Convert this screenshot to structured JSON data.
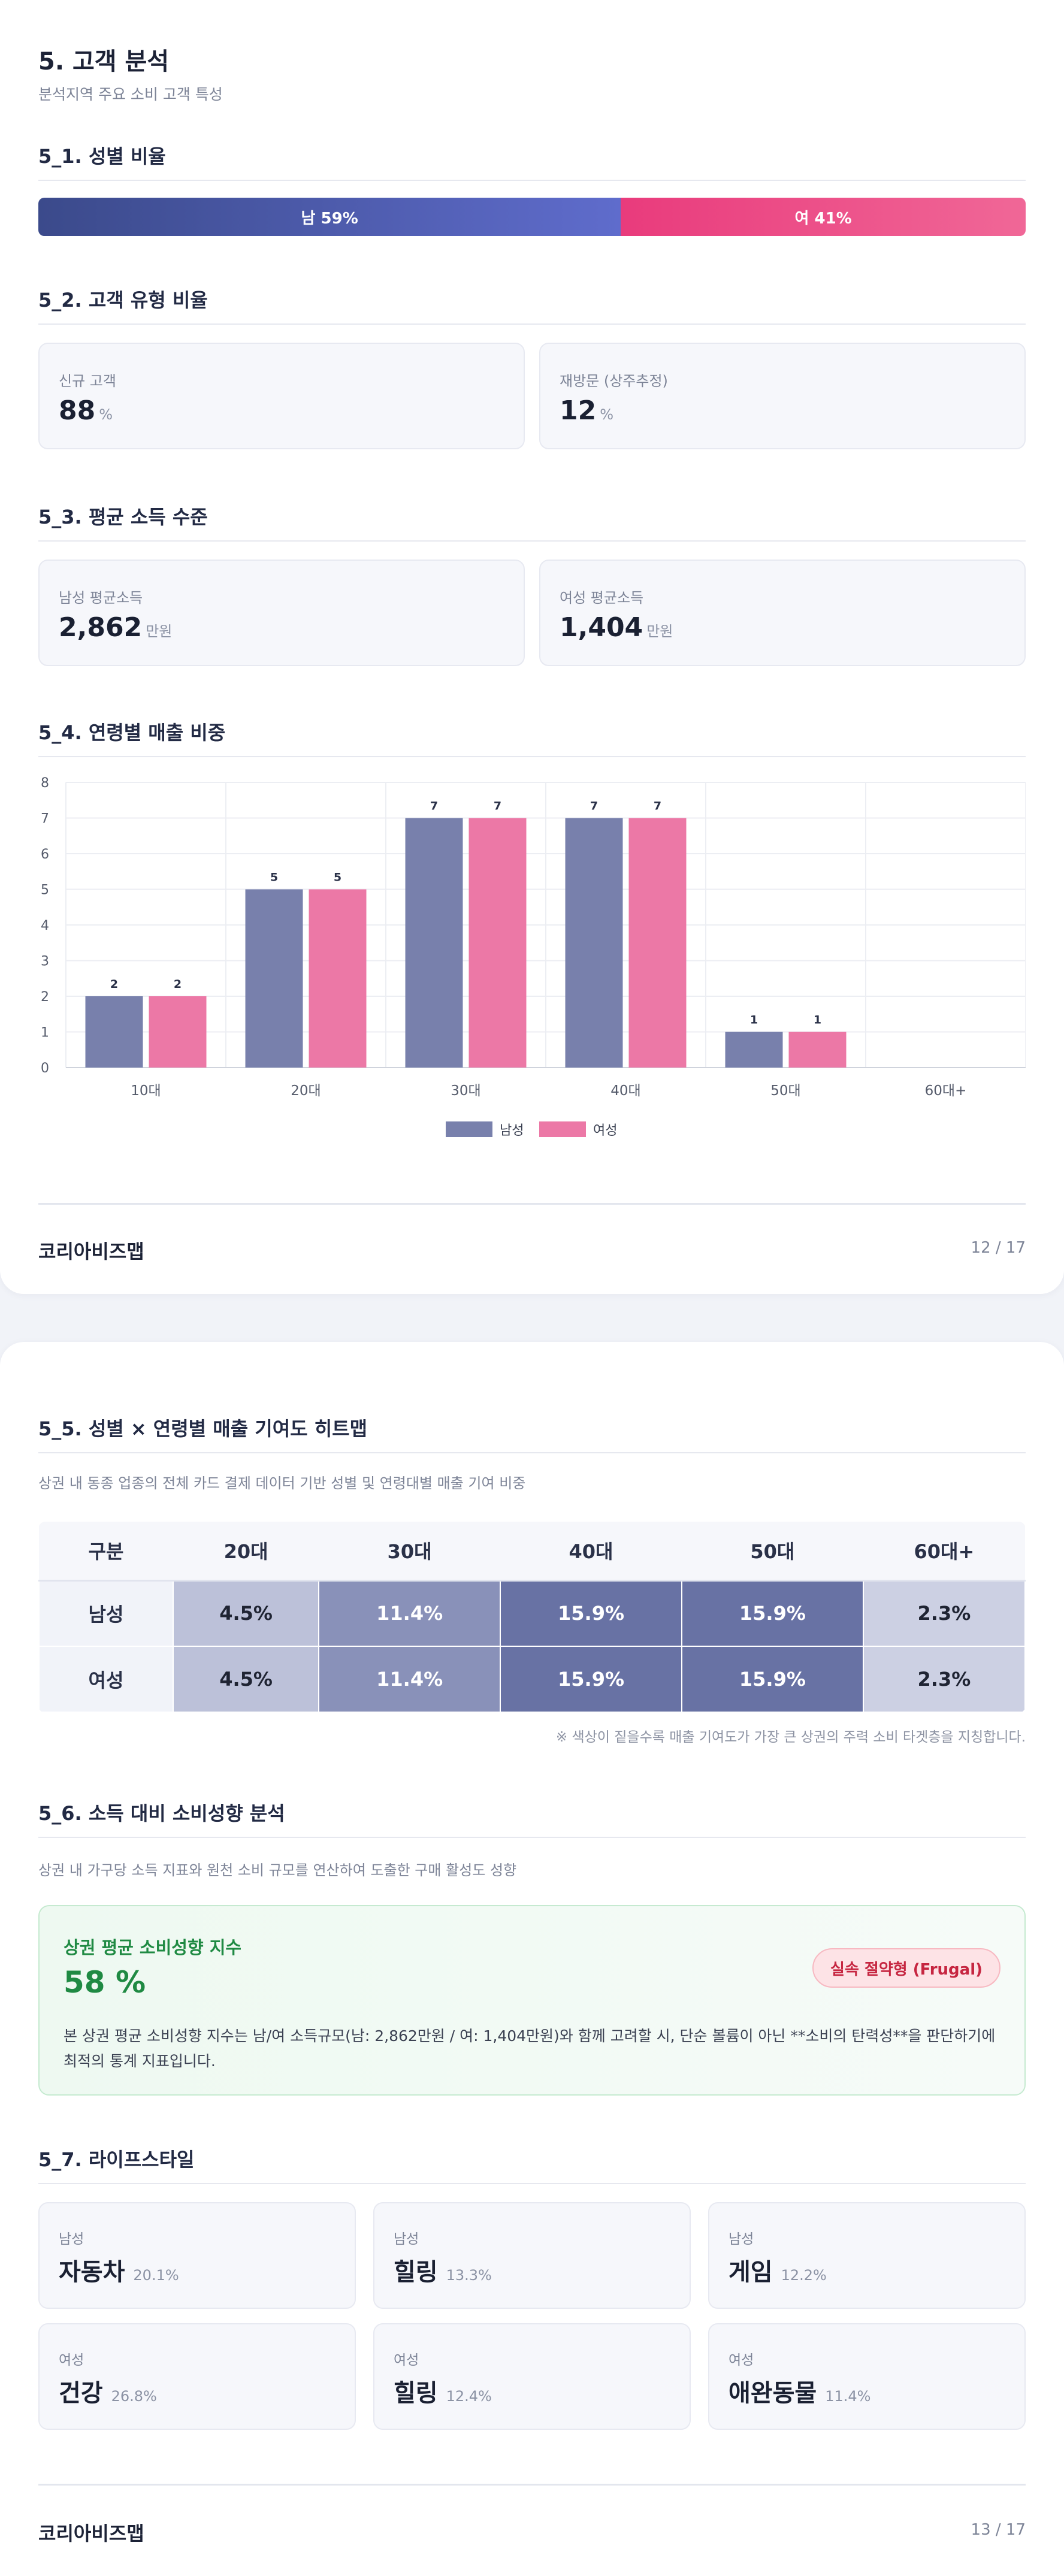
{
  "page1": {
    "title": "5. 고객 분석",
    "subtitle": "분석지역 주요 소비 고객 특성",
    "gender": {
      "heading": "5_1. 성별 비율",
      "male_label": "남 59%",
      "female_label": "여 41%",
      "male_share": 59,
      "female_share": 41,
      "colors": {
        "male": "#4a58a8",
        "female": "#ec4f88"
      }
    },
    "customer_type": {
      "heading": "5_2. 고객 유형 비율",
      "cards": [
        {
          "label": "신규 고객",
          "value": "88",
          "unit": "%"
        },
        {
          "label": "재방문 (상주추정)",
          "value": "12",
          "unit": "%"
        }
      ]
    },
    "income": {
      "heading": "5_3. 평균 소득 수준",
      "cards": [
        {
          "label": "남성 평균소득",
          "value": "2,862",
          "unit": "만원"
        },
        {
          "label": "여성 평균소득",
          "value": "1,404",
          "unit": "만원"
        }
      ]
    },
    "age_sales": {
      "heading": "5_4. 연령별 매출 비중"
    },
    "footer": {
      "brand": "코리아비즈맵",
      "page": "12 / 17"
    }
  },
  "chart_data": {
    "type": "bar",
    "categories": [
      "10대",
      "20대",
      "30대",
      "40대",
      "50대",
      "60대+"
    ],
    "series": [
      {
        "name": "남성",
        "values": [
          2,
          5,
          7,
          7,
          1,
          0
        ],
        "color": "#7880ac"
      },
      {
        "name": "여성",
        "values": [
          2,
          5,
          7,
          7,
          1,
          0
        ],
        "color": "#ec78a6"
      }
    ],
    "ylim": [
      0,
      8
    ],
    "yticks": [
      0,
      1,
      2,
      3,
      4,
      5,
      6,
      7,
      8
    ],
    "grid": true,
    "legend": "bottom"
  },
  "page2": {
    "heatmap": {
      "heading": "5_5. 성별 × 연령별 매출 기여도 히트맵",
      "description": "상권 내 동종 업종의 전체 카드 결제 데이터 기반 성별 및 연령대별 매출 기여 비중",
      "columns": [
        "구분",
        "20대",
        "30대",
        "40대",
        "50대",
        "60대+"
      ],
      "rows": [
        {
          "label": "남성",
          "cells": [
            {
              "text": "4.5%",
              "value": 4.5
            },
            {
              "text": "11.4%",
              "value": 11.4
            },
            {
              "text": "15.9%",
              "value": 15.9
            },
            {
              "text": "15.9%",
              "value": 15.9
            },
            {
              "text": "2.3%",
              "value": 2.3
            }
          ]
        },
        {
          "label": "여성",
          "cells": [
            {
              "text": "4.5%",
              "value": 4.5
            },
            {
              "text": "11.4%",
              "value": 11.4
            },
            {
              "text": "15.9%",
              "value": 15.9
            },
            {
              "text": "15.9%",
              "value": 15.9
            },
            {
              "text": "2.3%",
              "value": 2.3
            }
          ]
        }
      ],
      "note": "※ 색상이 짙을수록 매출 기여도가 가장 큰 상권의 주력 소비 타겟층을 지칭합니다."
    },
    "spending": {
      "heading": "5_6. 소득 대비 소비성향 분석",
      "description": "상권 내 가구당 소득 지표와 원천 소비 규모를 연산하여 도출한 구매 활성도 성향",
      "index_title": "상권 평균 소비성향 지수",
      "index_value": "58 %",
      "badge": "실속 절약형 (Frugal)",
      "text": "본 상권 평균 소비성향 지수는 남/여 소득규모(남: 2,862만원 / 여: 1,404만원)와 함께 고려할 시, 단순 볼륨이 아닌 **소비의 탄력성**을 판단하기에 최적의 통계 지표입니다."
    },
    "lifestyle": {
      "heading": "5_7. 라이프스타일",
      "cards": [
        {
          "gender": "남성",
          "name": "자동차",
          "pct": "20.1%"
        },
        {
          "gender": "남성",
          "name": "힐링",
          "pct": "13.3%"
        },
        {
          "gender": "남성",
          "name": "게임",
          "pct": "12.2%"
        },
        {
          "gender": "여성",
          "name": "건강",
          "pct": "26.8%"
        },
        {
          "gender": "여성",
          "name": "힐링",
          "pct": "12.4%"
        },
        {
          "gender": "여성",
          "name": "애완동물",
          "pct": "11.4%"
        }
      ]
    },
    "footer": {
      "brand": "코리아비즈맵",
      "page": "13 / 17"
    }
  }
}
